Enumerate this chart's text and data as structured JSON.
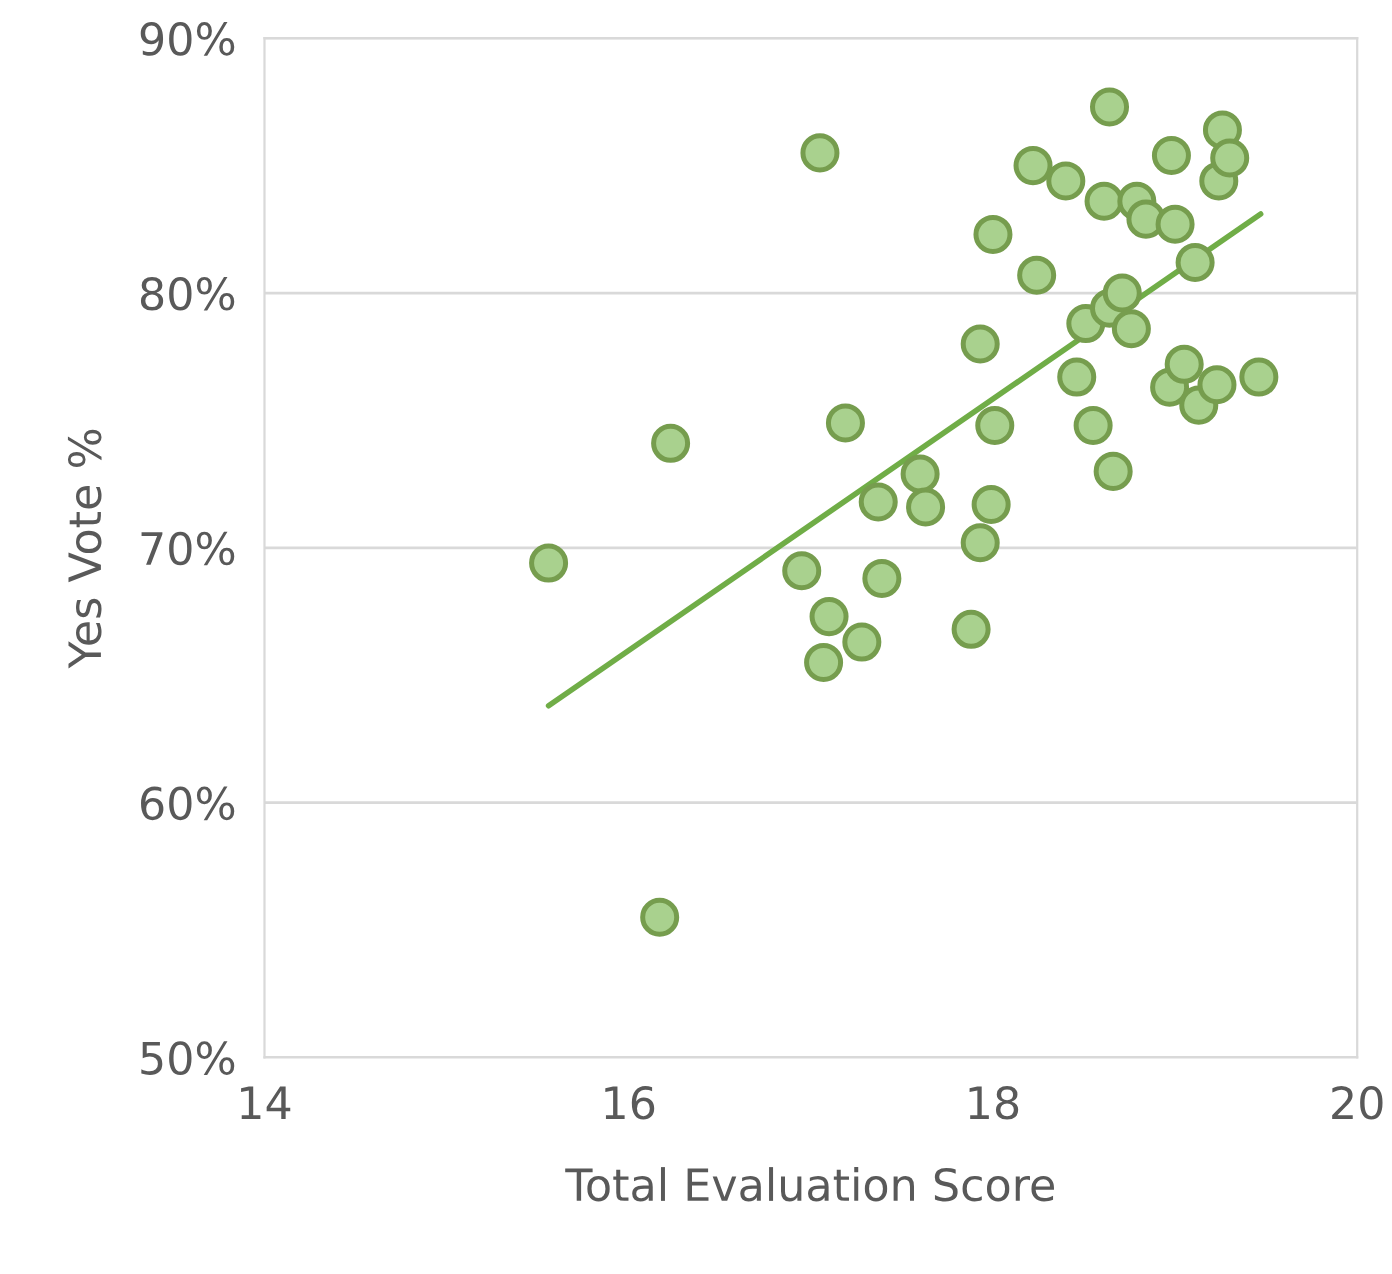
{
  "chart_data": {
    "type": "scatter",
    "xlabel": "Total Evaluation Score",
    "ylabel": "Yes Vote %",
    "xlim": [
      14,
      20
    ],
    "xticks": [
      14,
      16,
      18,
      20
    ],
    "ylim": [
      50,
      90
    ],
    "yticks": [
      {
        "value": 50,
        "label": "50%"
      },
      {
        "value": 60,
        "label": "60%"
      },
      {
        "value": 70,
        "label": "70%"
      },
      {
        "value": 80,
        "label": "80%"
      },
      {
        "value": 90,
        "label": "90%"
      }
    ],
    "grid": "y",
    "series": [
      {
        "marker": "circle",
        "color": "#a9d18e",
        "x": [
          15.56,
          16.17,
          16.23,
          17.05,
          16.95,
          17.19,
          17.1,
          17.07,
          17.28,
          17.39,
          17.37,
          17.6,
          17.63,
          17.88,
          17.93,
          17.93,
          17.99,
          18.01,
          18.0,
          18.22,
          18.24,
          18.4,
          18.46,
          18.51,
          18.55,
          18.61,
          18.64,
          18.66,
          18.64,
          18.71,
          18.76,
          18.79,
          18.84,
          18.97,
          18.98,
          19.0,
          19.05,
          19.11,
          19.13,
          19.23,
          19.24,
          19.26,
          19.3,
          19.46
        ],
        "values": [
          69.4,
          55.5,
          74.1,
          85.5,
          69.1,
          74.9,
          67.3,
          65.5,
          66.3,
          68.8,
          71.8,
          72.9,
          71.6,
          66.8,
          70.2,
          78.0,
          71.7,
          74.8,
          82.3,
          85.0,
          80.7,
          84.4,
          76.7,
          78.8,
          74.8,
          83.6,
          87.3,
          73.0,
          79.4,
          80.0,
          78.6,
          83.6,
          82.9,
          76.3,
          85.4,
          82.7,
          77.2,
          81.2,
          75.6,
          76.4,
          84.4,
          86.4,
          85.3,
          76.7
        ]
      },
      {
        "type": "line",
        "color": "#70ad47",
        "x": [
          15.56,
          19.47
        ],
        "values": [
          63.8,
          83.1
        ]
      }
    ]
  }
}
